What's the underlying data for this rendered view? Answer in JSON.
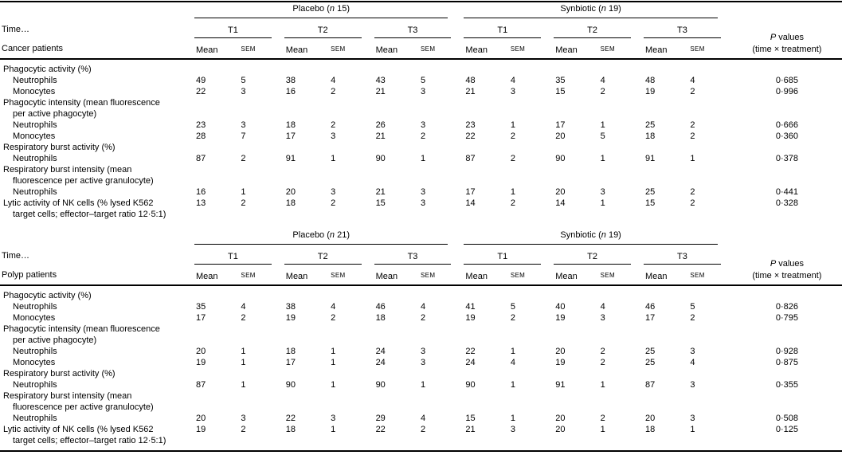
{
  "header": {
    "time_label": "Time…",
    "timepoints": [
      "T1",
      "T2",
      "T3"
    ],
    "stat_labels": [
      "Mean",
      "SEM"
    ],
    "p_values_line1": "P values",
    "p_values_line2": "(time × treatment)"
  },
  "sections": [
    {
      "patient_label": "Cancer patients",
      "groups": [
        "Placebo (n 15)",
        "Synbiotic (n 19)"
      ],
      "rows": [
        {
          "type": "category",
          "lines": [
            "Phagocytic activity (%)"
          ]
        },
        {
          "type": "data",
          "indent": 1,
          "lines": [
            "Neutrophils"
          ],
          "values": [
            49,
            5,
            38,
            4,
            43,
            5,
            48,
            4,
            35,
            4,
            48,
            4
          ],
          "p": "0·685"
        },
        {
          "type": "data",
          "indent": 1,
          "lines": [
            "Monocytes"
          ],
          "values": [
            22,
            3,
            16,
            2,
            21,
            3,
            21,
            3,
            15,
            2,
            19,
            2
          ],
          "p": "0·996"
        },
        {
          "type": "category",
          "lines": [
            "Phagocytic intensity (mean fluorescence",
            "per active phagocyte)"
          ]
        },
        {
          "type": "data",
          "indent": 1,
          "lines": [
            "Neutrophils"
          ],
          "values": [
            23,
            3,
            18,
            2,
            26,
            3,
            23,
            1,
            17,
            1,
            25,
            2
          ],
          "p": "0·666"
        },
        {
          "type": "data",
          "indent": 1,
          "lines": [
            "Monocytes"
          ],
          "values": [
            28,
            7,
            17,
            3,
            21,
            2,
            22,
            2,
            20,
            5,
            18,
            2
          ],
          "p": "0·360"
        },
        {
          "type": "category",
          "lines": [
            "Respiratory burst activity (%)"
          ]
        },
        {
          "type": "data",
          "indent": 1,
          "lines": [
            "Neutrophils"
          ],
          "values": [
            87,
            2,
            91,
            1,
            90,
            1,
            87,
            2,
            90,
            1,
            91,
            1
          ],
          "p": "0·378"
        },
        {
          "type": "category",
          "lines": [
            "Respiratory burst intensity (mean",
            "fluorescence per active granulocyte)"
          ]
        },
        {
          "type": "data",
          "indent": 1,
          "lines": [
            "Neutrophils"
          ],
          "values": [
            16,
            1,
            20,
            3,
            21,
            3,
            17,
            1,
            20,
            3,
            25,
            2
          ],
          "p": "0·441"
        },
        {
          "type": "data",
          "indent": 0,
          "lines": [
            "Lytic activity of NK cells (% lysed K562",
            "target cells; effector–target ratio 12·5:1)"
          ],
          "values": [
            13,
            2,
            18,
            2,
            15,
            3,
            14,
            2,
            14,
            1,
            15,
            2
          ],
          "p": "0·328"
        }
      ]
    },
    {
      "patient_label": "Polyp patients",
      "groups": [
        "Placebo (n 21)",
        "Synbiotic (n 19)"
      ],
      "rows": [
        {
          "type": "category",
          "lines": [
            "Phagocytic activity (%)"
          ]
        },
        {
          "type": "data",
          "indent": 1,
          "lines": [
            "Neutrophils"
          ],
          "values": [
            35,
            4,
            38,
            4,
            46,
            4,
            41,
            5,
            40,
            4,
            46,
            5
          ],
          "p": "0·826"
        },
        {
          "type": "data",
          "indent": 1,
          "lines": [
            "Monocytes"
          ],
          "values": [
            17,
            2,
            19,
            2,
            18,
            2,
            19,
            2,
            19,
            3,
            17,
            2
          ],
          "p": "0·795"
        },
        {
          "type": "category",
          "lines": [
            "Phagocytic intensity (mean fluorescence",
            "per active phagocyte)"
          ]
        },
        {
          "type": "data",
          "indent": 1,
          "lines": [
            "Neutrophils"
          ],
          "values": [
            20,
            1,
            18,
            1,
            24,
            3,
            22,
            1,
            20,
            2,
            25,
            3
          ],
          "p": "0·928"
        },
        {
          "type": "data",
          "indent": 1,
          "lines": [
            "Monocytes"
          ],
          "values": [
            19,
            1,
            17,
            1,
            24,
            3,
            24,
            4,
            19,
            2,
            25,
            4
          ],
          "p": "0·875"
        },
        {
          "type": "category",
          "lines": [
            "Respiratory burst activity (%)"
          ]
        },
        {
          "type": "data",
          "indent": 1,
          "lines": [
            "Neutrophils"
          ],
          "values": [
            87,
            1,
            90,
            1,
            90,
            1,
            90,
            1,
            91,
            1,
            87,
            3
          ],
          "p": "0·355"
        },
        {
          "type": "category",
          "lines": [
            "Respiratory burst intensity (mean",
            "fluorescence per active granulocyte)"
          ]
        },
        {
          "type": "data",
          "indent": 1,
          "lines": [
            "Neutrophils"
          ],
          "values": [
            20,
            3,
            22,
            3,
            29,
            4,
            15,
            1,
            20,
            2,
            20,
            3
          ],
          "p": "0·508"
        },
        {
          "type": "data",
          "indent": 0,
          "lines": [
            "Lytic activity of NK cells (% lysed K562",
            "target cells; effector–target ratio 12·5:1)"
          ],
          "values": [
            19,
            2,
            18,
            1,
            22,
            2,
            21,
            3,
            20,
            1,
            18,
            1
          ],
          "p": "0·125"
        }
      ]
    }
  ]
}
